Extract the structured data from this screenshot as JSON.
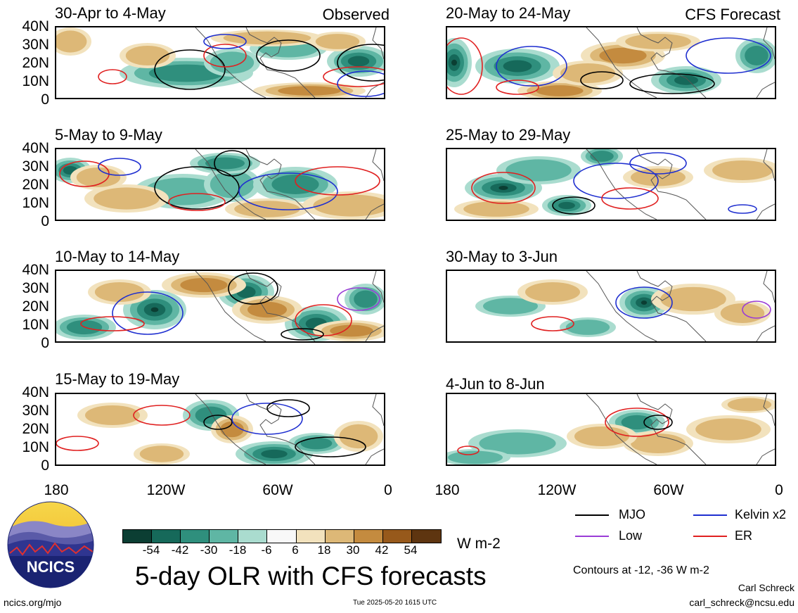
{
  "panels_left": [
    {
      "title": "30-Apr to 4-May",
      "tag": "Observed"
    },
    {
      "title": "5-May to 9-May",
      "tag": ""
    },
    {
      "title": "10-May to 14-May",
      "tag": ""
    },
    {
      "title": "15-May to 19-May",
      "tag": ""
    }
  ],
  "panels_right": [
    {
      "title": "20-May to 24-May",
      "tag": "CFS Forecast"
    },
    {
      "title": "25-May to 29-May",
      "tag": ""
    },
    {
      "title": "30-May to 3-Jun",
      "tag": ""
    },
    {
      "title": "4-Jun to 8-Jun",
      "tag": ""
    }
  ],
  "axes": {
    "lat_labels": [
      "40N",
      "30N",
      "20N",
      "10N",
      "0"
    ],
    "lon_labels": [
      "180",
      "120W",
      "60W",
      "0"
    ]
  },
  "colorbar": {
    "labels": [
      "-54",
      "-42",
      "-30",
      "-18",
      "-6",
      "6",
      "18",
      "30",
      "42",
      "54"
    ],
    "colors": [
      "#0b3e33",
      "#16695a",
      "#2f8f7d",
      "#5fb6a4",
      "#aadccf",
      "#f8f8f8",
      "#f2e2bd",
      "#ddb877",
      "#c48b3f",
      "#97591b",
      "#5e3510"
    ],
    "unit": "W m-2"
  },
  "legend": {
    "mjo": {
      "label": "MJO",
      "color": "#000000"
    },
    "kelvin": {
      "label": "Kelvin x2",
      "color": "#1f2fd0"
    },
    "low": {
      "label": "Low",
      "color": "#9a3cd6"
    },
    "er": {
      "label": "ER",
      "color": "#e02020"
    }
  },
  "main_title": "5-day OLR with CFS forecasts",
  "contour_note": "Contours at -12, -36 W m-2",
  "author": "Carl Schreck",
  "email": "carl_schreck@ncsu.edu",
  "site": "ncics.org/mjo",
  "timestamp": "Tue 2025-05-20 1615 UTC",
  "logo_text": "NCICS"
}
